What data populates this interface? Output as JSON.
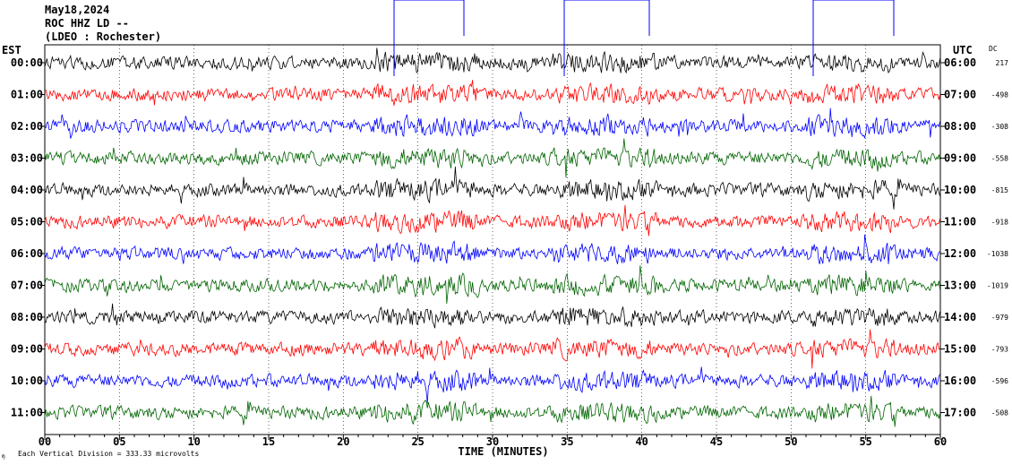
{
  "header": {
    "date": "May18,2024",
    "station": "ROC HHZ LD --",
    "network": "(LDEO : Rochester)"
  },
  "footer": {
    "note": "Each Vertical Division =  333.33 microvolts"
  },
  "chart_data": {
    "type": "line",
    "title": "",
    "xlabel": "TIME (MINUTES)",
    "left_axis_label": "EST",
    "right_axis_label": "UTC",
    "dc_label": "DC",
    "xlim": [
      0,
      60
    ],
    "x_ticks": [
      "00",
      "05",
      "10",
      "15",
      "20",
      "25",
      "30",
      "35",
      "40",
      "45",
      "50",
      "55",
      "60"
    ],
    "grid": true,
    "trace_colors": [
      "#000000",
      "#ff0000",
      "#0000ff",
      "#006400"
    ],
    "rows": [
      {
        "est": "00:00",
        "utc": "06:00",
        "dc": "217"
      },
      {
        "est": "01:00",
        "utc": "07:00",
        "dc": "-498"
      },
      {
        "est": "02:00",
        "utc": "08:00",
        "dc": "-308"
      },
      {
        "est": "03:00",
        "utc": "09:00",
        "dc": "-558"
      },
      {
        "est": "04:00",
        "utc": "10:00",
        "dc": "-815"
      },
      {
        "est": "05:00",
        "utc": "11:00",
        "dc": "-918"
      },
      {
        "est": "06:00",
        "utc": "12:00",
        "dc": "-1038"
      },
      {
        "est": "07:00",
        "utc": "13:00",
        "dc": "-1019"
      },
      {
        "est": "08:00",
        "utc": "14:00",
        "dc": "-979"
      },
      {
        "est": "09:00",
        "utc": "15:00",
        "dc": "-793"
      },
      {
        "est": "10:00",
        "utc": "16:00",
        "dc": "-596"
      },
      {
        "est": "11:00",
        "utc": "17:00",
        "dc": "-508"
      }
    ]
  }
}
